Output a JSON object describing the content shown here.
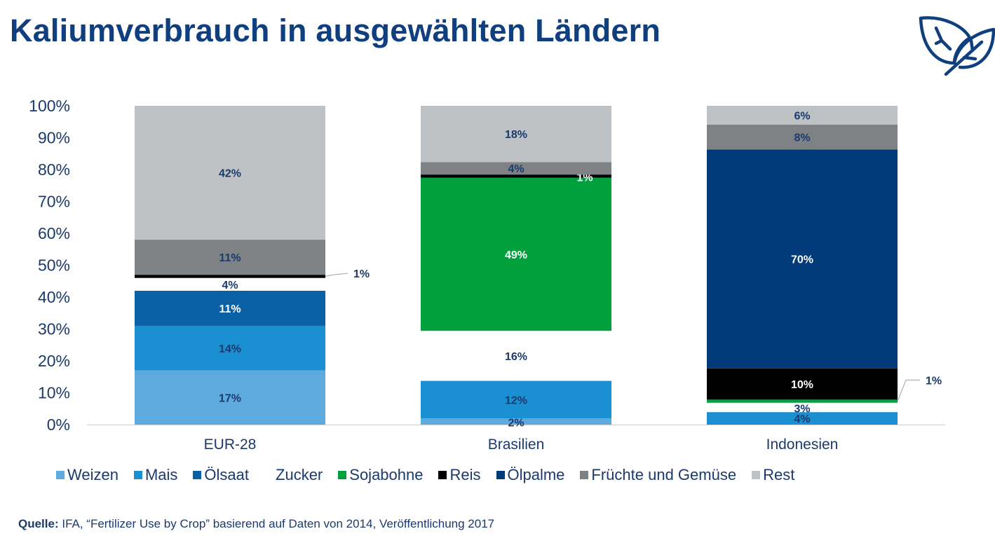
{
  "title": "Kaliumverbrauch in ausgewählten Ländern",
  "logo_icon": "leaves-icon",
  "source": {
    "label": "Quelle:",
    "text": " IFA, “Fertilizer Use by Crop” basierend auf Daten von 2014, Veröffentlichung 2017"
  },
  "chart_data": {
    "type": "bar",
    "stacked": true,
    "categories": [
      "EUR-28",
      "Brasilien",
      "Indonesien"
    ],
    "ylim": [
      0,
      100
    ],
    "yticks": [
      "0%",
      "10%",
      "20%",
      "30%",
      "40%",
      "50%",
      "60%",
      "70%",
      "80%",
      "90%",
      "100%"
    ],
    "grid": false,
    "legend_position": "bottom",
    "series": [
      {
        "name": "Weizen",
        "color": "#5eaadf",
        "values": [
          17,
          2,
          0
        ],
        "labels": [
          "17%",
          "2%",
          ""
        ]
      },
      {
        "name": "Mais",
        "color": "#1a8fd2",
        "values": [
          14,
          12,
          4
        ],
        "labels": [
          "14%",
          "12%",
          "4%"
        ]
      },
      {
        "name": "Ölsaat",
        "color": "#0a5fa5",
        "values": [
          11,
          0,
          0
        ],
        "labels": [
          "11%",
          "",
          ""
        ]
      },
      {
        "name": "Zucker",
        "color": "#ffffff",
        "values": [
          4,
          16,
          3
        ],
        "labels": [
          "4%",
          "16%",
          "3%"
        ]
      },
      {
        "name": "Sojabohne",
        "color": "#00a03c",
        "values": [
          0,
          49,
          1
        ],
        "labels": [
          "",
          "49%",
          "1%"
        ]
      },
      {
        "name": "Reis",
        "color": "#000000",
        "values": [
          1,
          1,
          10
        ],
        "labels": [
          "1%",
          "1%",
          "10%"
        ]
      },
      {
        "name": "Ölpalme",
        "color": "#003a78",
        "values": [
          0,
          0,
          70
        ],
        "labels": [
          "",
          "",
          "70%"
        ]
      },
      {
        "name": "Früchte und Gemüse",
        "color": "#7f8285",
        "values": [
          11,
          4,
          8
        ],
        "labels": [
          "11%",
          "4%",
          "8%"
        ]
      },
      {
        "name": "Rest",
        "color": "#bfc2c5",
        "values": [
          42,
          18,
          6
        ],
        "labels": [
          "42%",
          "18%",
          "6%"
        ]
      }
    ]
  }
}
